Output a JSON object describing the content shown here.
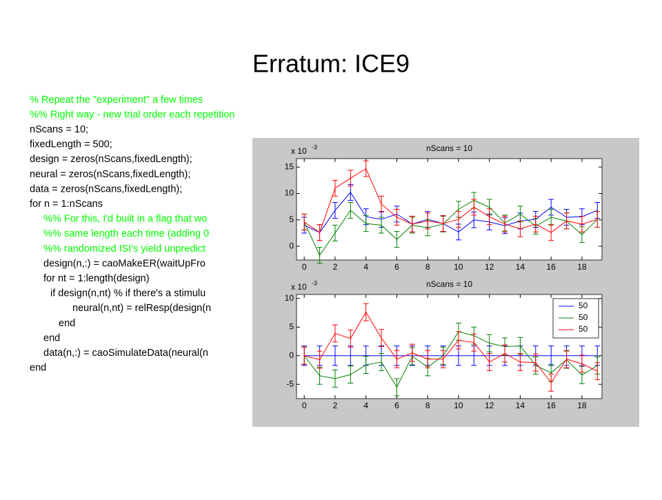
{
  "title": "Erratum:  ICE9",
  "code": [
    {
      "text": "% Repeat the \"experiment\" a few times",
      "color": "#00ff00"
    },
    {
      "text": "%%  Right way - new trial order each repetition",
      "color": "#00ff00"
    },
    {
      "text": "nScans = 10;",
      "color": "#000000"
    },
    {
      "text": "fixedLength = 500;",
      "color": "#000000"
    },
    {
      "text": "design = zeros(nScans,fixedLength);",
      "color": "#000000"
    },
    {
      "text": "neural = zeros(nScans,fixedLength);",
      "color": "#000000"
    },
    {
      "text": "data = zeros(nScans,fixedLength);",
      "color": "#000000"
    },
    {
      "text": "for n = 1:nScans",
      "color": "#000000"
    },
    {
      "text": "%% For this, I'd built in a flag that wo",
      "color": "#00ff00"
    },
    {
      "text": "%% same length each time (adding 0",
      "color": "#00ff00"
    },
    {
      "text": "%% randomized ISI's yield unpredict",
      "color": "#00ff00"
    },
    {
      "text": "design(n,:) = caoMakeER(waitUpFro",
      "color": "#000000"
    },
    {
      "text": "for nt = 1:length(design)",
      "color": "#000000"
    },
    {
      "text": "if design(n,nt) % if there's a stimulu",
      "color": "#000000"
    },
    {
      "text": "neural(n,nt) = relResp(design(n",
      "color": "#000000"
    },
    {
      "text": "end",
      "color": "#000000"
    },
    {
      "text": "end",
      "color": "#000000"
    },
    {
      "text": "data(n,:) = caoSimulateData(neural(n",
      "color": "#000000"
    },
    {
      "text": "end",
      "color": "#000000"
    }
  ],
  "chart_data": [
    {
      "type": "errorbar",
      "title": "nScans = 10",
      "y_multiplier": {
        "base": "x 10",
        "exponent": "-3"
      },
      "x": [
        0,
        1,
        2,
        3,
        4,
        5,
        6,
        7,
        8,
        9,
        10,
        11,
        12,
        13,
        14,
        15,
        16,
        17,
        18,
        19
      ],
      "xlim": [
        -0.5,
        19.3
      ],
      "xticks": [
        0,
        2,
        4,
        6,
        8,
        10,
        12,
        14,
        16,
        18
      ],
      "ylim": [
        -2.6,
        16.6
      ],
      "yticks": [
        0,
        5,
        10,
        15
      ],
      "series": [
        {
          "color": "#0000ff",
          "values": [
            4,
            2.6,
            6.8,
            10.2,
            5.6,
            5.1,
            6.1,
            4.2,
            5.1,
            4.3,
            2.7,
            5,
            4.6,
            3.9,
            4.8,
            5.1,
            7.4,
            5.5,
            5.6,
            6.8
          ],
          "errors": [
            1.5,
            1.5,
            1.5,
            1.5,
            1.5,
            1.5,
            1.5,
            1.5,
            1.5,
            1.5,
            1.5,
            1.5,
            1.5,
            1.5,
            1.5,
            1.5,
            1.5,
            1.5,
            1.5,
            1.5
          ]
        },
        {
          "color": "#008000",
          "values": [
            4.6,
            -1.7,
            2.5,
            6.8,
            4.3,
            4,
            1.3,
            4,
            3.5,
            4.2,
            7,
            8.7,
            7.4,
            4.4,
            6.1,
            3.8,
            5.5,
            4.8,
            2.2,
            5.1
          ],
          "errors": [
            1.5,
            1.5,
            1.5,
            1.5,
            1.5,
            1.5,
            1.5,
            1.5,
            1.5,
            1.5,
            1.5,
            1.5,
            1.5,
            1.5,
            1.5,
            1.5,
            1.5,
            1.5,
            1.5,
            1.5
          ]
        },
        {
          "color": "#ff0000",
          "values": [
            4.6,
            2.6,
            11,
            12.9,
            14.7,
            8,
            5.5,
            4.2,
            4.8,
            4.3,
            5.1,
            7.4,
            5.6,
            4.2,
            3.3,
            4.2,
            2.6,
            4.8,
            4.2,
            5.1
          ],
          "errors": [
            1.5,
            1.5,
            1.5,
            1.5,
            1.5,
            1.5,
            1.5,
            1.5,
            1.5,
            1.5,
            1.5,
            1.5,
            1.5,
            1.5,
            1.5,
            1.5,
            1.5,
            1.5,
            1.5,
            1.5
          ]
        }
      ]
    },
    {
      "type": "errorbar",
      "title": "nScans = 10",
      "y_multiplier": {
        "base": "x 10",
        "exponent": "-3"
      },
      "x": [
        0,
        1,
        2,
        3,
        4,
        5,
        6,
        7,
        8,
        9,
        10,
        11,
        12,
        13,
        14,
        15,
        16,
        17,
        18,
        19
      ],
      "xlim": [
        -0.5,
        19.3
      ],
      "xticks": [
        0,
        2,
        4,
        6,
        8,
        10,
        12,
        14,
        16,
        18
      ],
      "ylim": [
        -7.5,
        10.7
      ],
      "yticks": [
        -5,
        0,
        5,
        10
      ],
      "legend": "northeast",
      "series": [
        {
          "name": "50",
          "color": "#0000ff",
          "values": [
            0,
            0,
            0,
            0,
            0,
            0,
            0,
            0,
            0,
            0,
            0,
            0,
            0,
            0,
            0,
            0,
            0,
            0,
            0,
            0
          ],
          "errors": [
            1.7,
            1.7,
            1.7,
            1.7,
            1.7,
            1.7,
            1.7,
            1.7,
            1.7,
            1.7,
            1.7,
            1.7,
            1.7,
            1.7,
            1.7,
            1.7,
            1.7,
            1.7,
            1.7,
            1.7
          ]
        },
        {
          "name": "50",
          "color": "#008000",
          "values": [
            0,
            -3.5,
            -4,
            -3.3,
            -1.6,
            -1.1,
            -5.5,
            -0.1,
            -2,
            0,
            4.2,
            3.5,
            2.2,
            1.6,
            1.7,
            -1.7,
            -3,
            -0.7,
            -3.4,
            -1.7
          ],
          "errors": [
            1.5,
            1.5,
            1.5,
            1.5,
            1.5,
            1.5,
            1.5,
            1.5,
            1.5,
            1.5,
            1.5,
            1.5,
            1.5,
            1.5,
            1.5,
            1.5,
            1.5,
            1.5,
            1.5,
            1.5
          ]
        },
        {
          "name": "50",
          "color": "#ff0000",
          "values": [
            0,
            -0.7,
            3.9,
            3,
            7.6,
            3.1,
            -0.6,
            0.5,
            -0.6,
            -0.6,
            2.7,
            2.3,
            -1.1,
            0.4,
            -1.1,
            -1.2,
            -4.7,
            -0.6,
            -1.4,
            -2.7
          ],
          "errors": [
            1.5,
            1.5,
            1.5,
            1.5,
            1.5,
            1.5,
            1.5,
            1.5,
            1.5,
            1.5,
            1.5,
            1.5,
            1.5,
            1.5,
            1.5,
            1.5,
            1.5,
            1.5,
            1.5,
            1.5
          ]
        }
      ]
    }
  ]
}
